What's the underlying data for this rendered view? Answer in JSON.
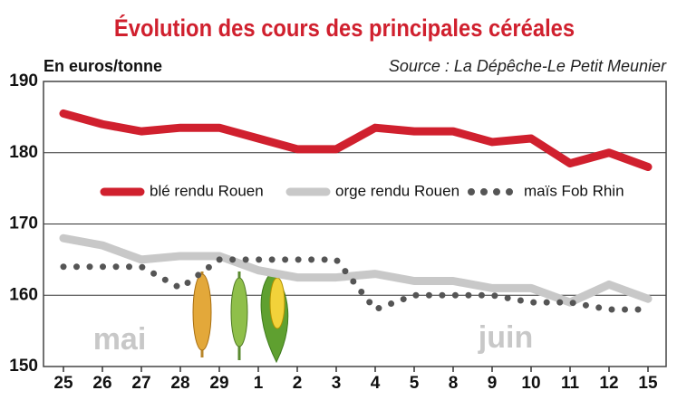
{
  "chart_data": {
    "type": "line",
    "title": "Évolution des cours des principales céréales",
    "ylabel": "En euros/tonne",
    "source": "Source : La Dépêche-Le Petit Meunier",
    "annotations": [
      "mai",
      "juin"
    ],
    "categories": [
      "25",
      "26",
      "27",
      "28",
      "29",
      "1",
      "2",
      "3",
      "4",
      "5",
      "8",
      "9",
      "10",
      "11",
      "12",
      "15"
    ],
    "series": [
      {
        "name": "blé rendu Rouen",
        "color": "#d0202e",
        "style": "solid",
        "values": [
          185.5,
          184,
          183,
          183.5,
          183.5,
          182,
          180.5,
          180.5,
          183.5,
          183,
          183,
          181.5,
          182,
          178.5,
          180,
          178
        ]
      },
      {
        "name": "orge rendu Rouen",
        "color": "#c8c8c8",
        "style": "solid",
        "values": [
          168,
          167,
          165,
          165.5,
          165.5,
          163.5,
          162.5,
          162.5,
          163,
          162,
          162,
          161,
          161,
          159,
          161.5,
          159.5
        ]
      },
      {
        "name": "maïs Fob Rhin",
        "color": "#555555",
        "style": "dotted",
        "values": [
          164,
          164,
          164,
          161,
          165,
          165,
          165,
          165,
          158,
          160,
          160,
          160,
          159,
          159,
          158,
          158
        ]
      }
    ],
    "ylim": [
      150,
      190
    ],
    "yticks": [
      150,
      160,
      170,
      180,
      190
    ],
    "grid": true
  }
}
